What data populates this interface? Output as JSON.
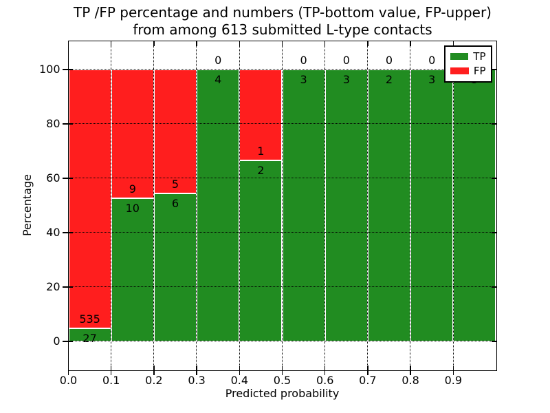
{
  "chart_data": {
    "type": "bar",
    "stacked": true,
    "title_lines": [
      "TP /FP percentage and numbers (TP-bottom value, FP-upper)",
      "from among 613 submitted L-type contacts"
    ],
    "xlabel": "Predicted probability",
    "ylabel": "Percentage",
    "x_tick_labels": [
      "0.0",
      "0.1",
      "0.2",
      "0.3",
      "0.4",
      "0.5",
      "0.6",
      "0.7",
      "0.8",
      "0.9"
    ],
    "y_tick_values": [
      0,
      20,
      40,
      60,
      80,
      100
    ],
    "ylim": [
      -10.5,
      110.5
    ],
    "xlim": [
      0.0,
      1.0
    ],
    "bin_edges": [
      0.0,
      0.1,
      0.2,
      0.3,
      0.4,
      0.5,
      0.6,
      0.7,
      0.8,
      0.9,
      1.0
    ],
    "grid": "dotted, drawn above bars",
    "bar_edge_color": "#ffffff",
    "series": [
      {
        "name": "TP",
        "color": "#218c21",
        "counts": [
          27,
          10,
          6,
          4,
          2,
          3,
          3,
          2,
          3,
          3
        ],
        "percent": [
          4.8,
          52.6,
          54.5,
          100,
          66.7,
          100,
          100,
          100,
          100,
          100
        ]
      },
      {
        "name": "FP",
        "color": "#ff1e1e",
        "counts": [
          535,
          9,
          5,
          0,
          1,
          0,
          0,
          0,
          0,
          0
        ],
        "percent": [
          95.2,
          47.4,
          45.5,
          0,
          33.3,
          0,
          0,
          0,
          0,
          0
        ]
      }
    ],
    "legend": {
      "location": "upper right",
      "items": [
        {
          "label": "TP",
          "color": "#218c21"
        },
        {
          "label": "FP",
          "color": "#ff1e1e"
        }
      ]
    }
  }
}
